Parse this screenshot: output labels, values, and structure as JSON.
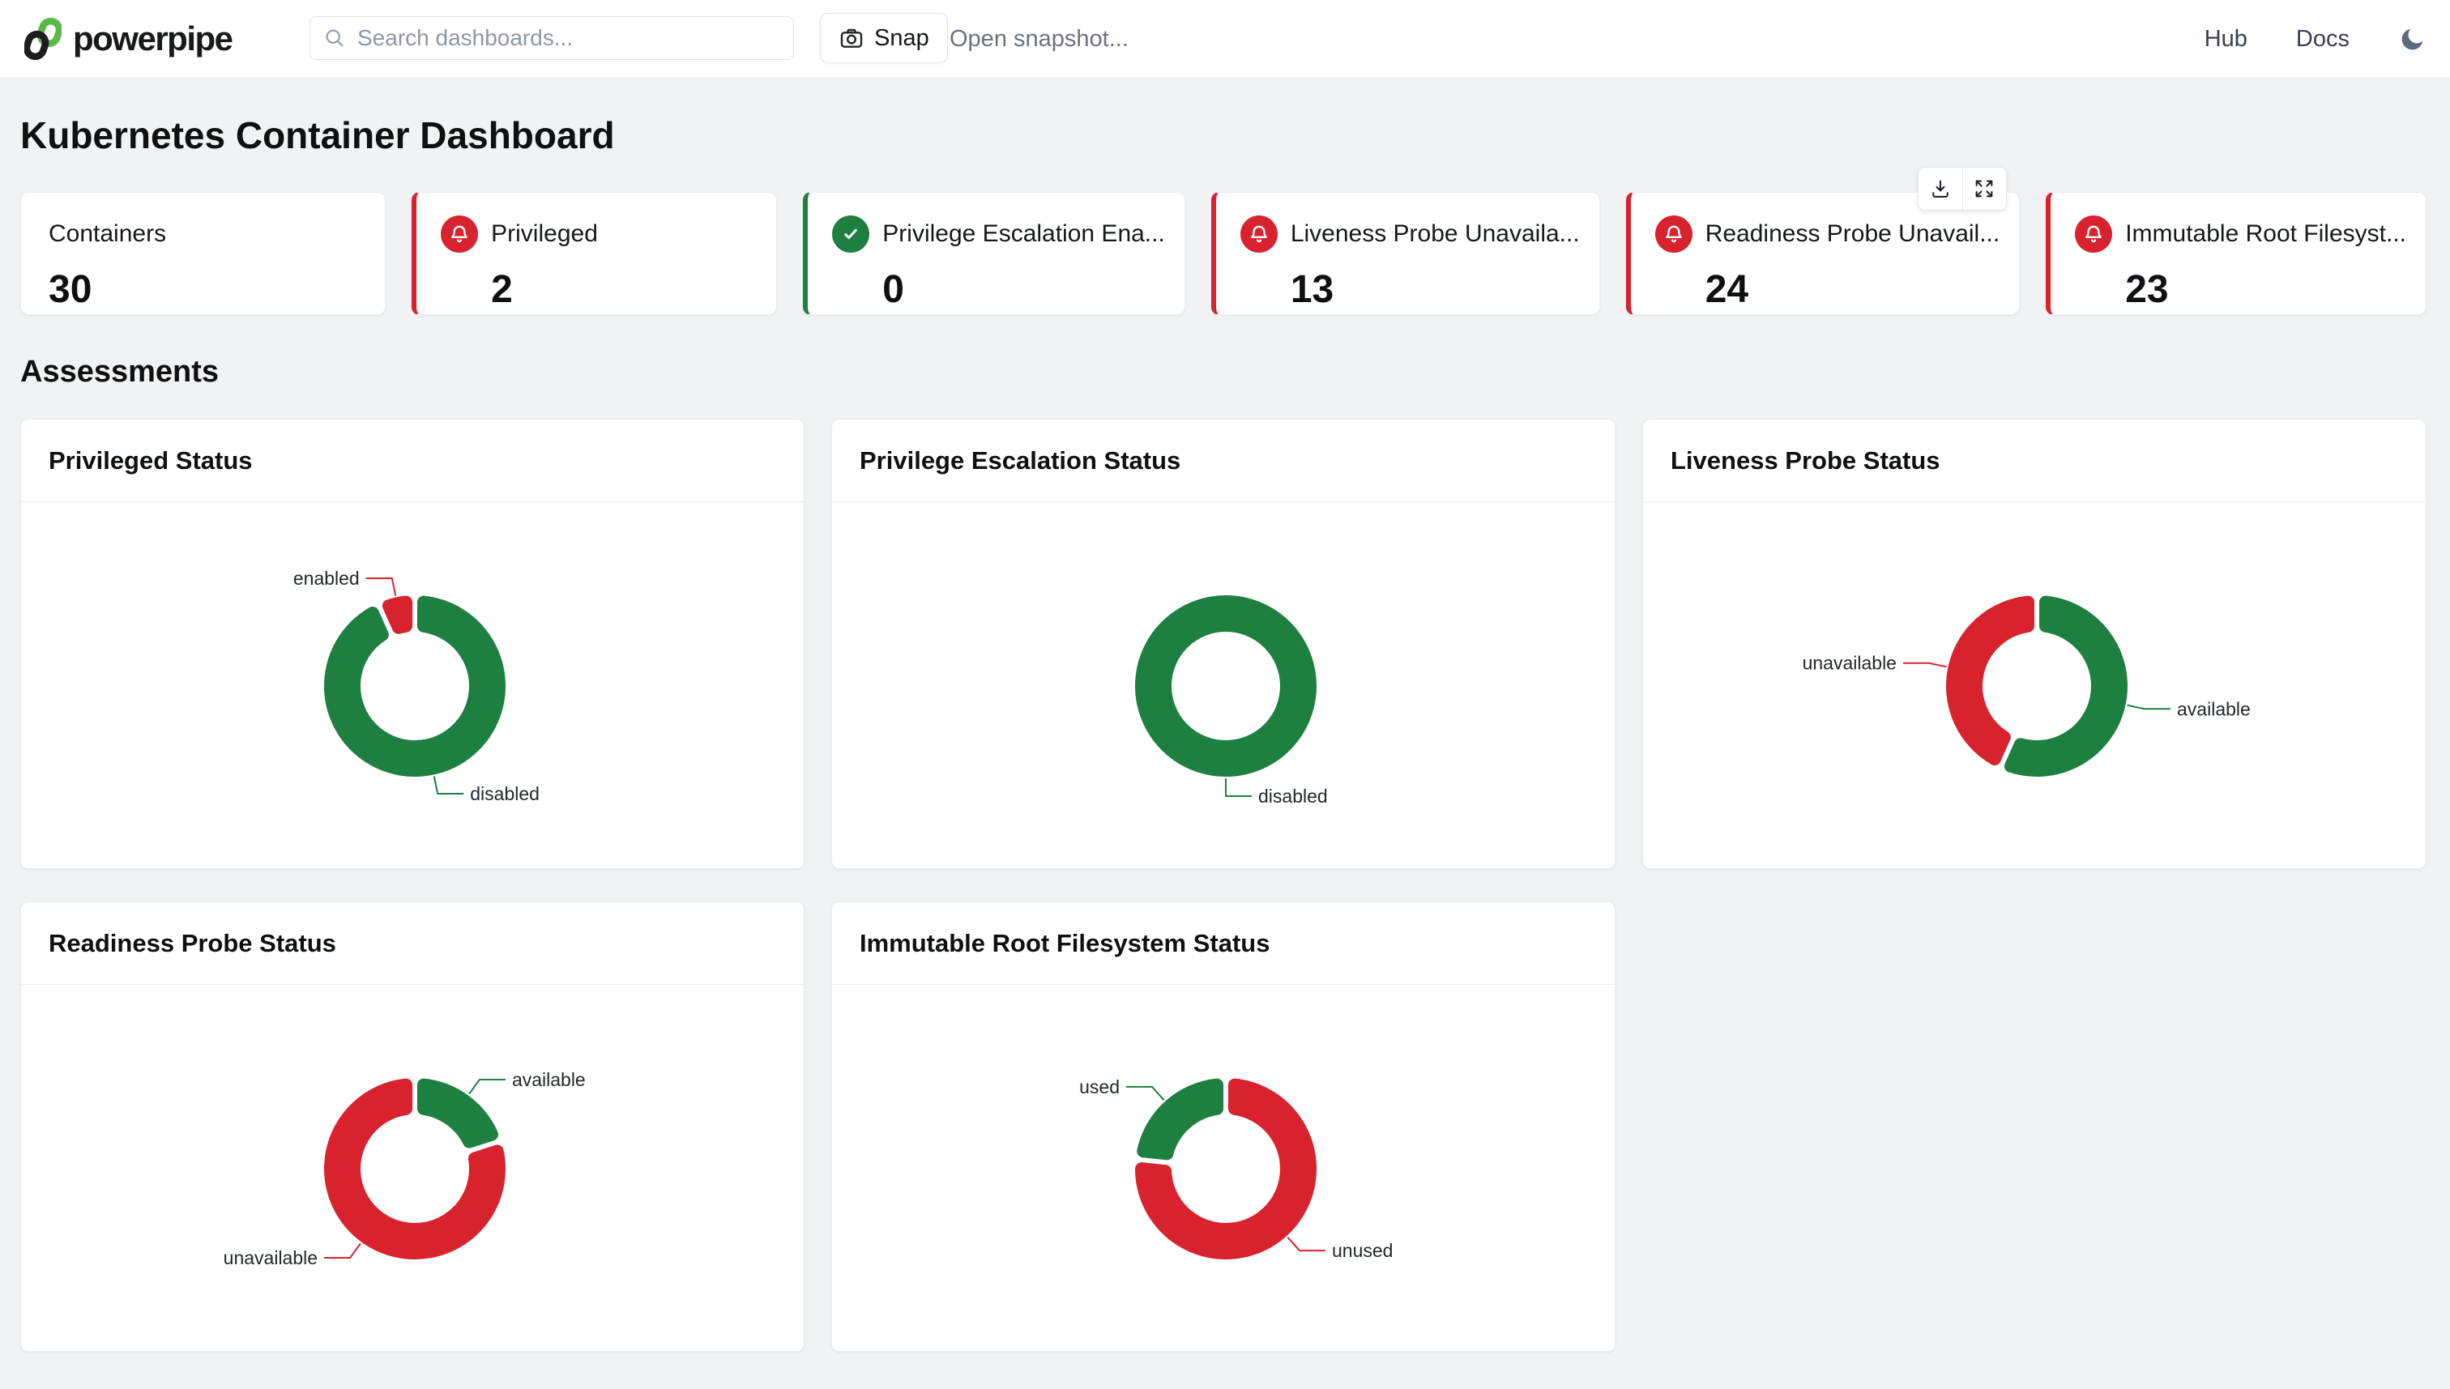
{
  "theme": {
    "ok_green": "#1e8040",
    "alert_red": "#d8232f",
    "background": "#f1f2f4"
  },
  "header": {
    "brand": "powerpipe",
    "search": {
      "placeholder": "Search dashboards..."
    },
    "snap_label": "Snap",
    "open_snapshot_label": "Open snapshot...",
    "nav": {
      "hub": "Hub",
      "docs": "Docs"
    }
  },
  "page": {
    "title": "Kubernetes Container Dashboard",
    "section_title": "Assessments"
  },
  "metrics": {
    "cards": [
      {
        "label": "Containers",
        "value": "30",
        "status": "none"
      },
      {
        "label": "Privileged",
        "value": "2",
        "status": "alert"
      },
      {
        "label": "Privilege Escalation Ena...",
        "value": "0",
        "status": "ok"
      },
      {
        "label": "Liveness Probe Unavaila...",
        "value": "13",
        "status": "alert"
      },
      {
        "label": "Readiness Probe Unavail...",
        "value": "24",
        "status": "alert"
      },
      {
        "label": "Immutable Root Filesyst...",
        "value": "23",
        "status": "alert"
      }
    ]
  },
  "panel_toolbar": {
    "buttons": [
      "download",
      "expand"
    ]
  },
  "chart_data": [
    {
      "type": "pie",
      "title": "Privileged Status",
      "legend": "off",
      "label_style": "callout",
      "total": 30,
      "slices": [
        {
          "label": "disabled",
          "value": 28,
          "color": "#1e8040"
        },
        {
          "label": "enabled",
          "value": 2,
          "color": "#d8232f"
        }
      ]
    },
    {
      "type": "pie",
      "title": "Privilege Escalation Status",
      "legend": "off",
      "label_style": "callout",
      "total": 30,
      "slices": [
        {
          "label": "disabled",
          "value": 30,
          "color": "#1e8040"
        }
      ]
    },
    {
      "type": "pie",
      "title": "Liveness Probe Status",
      "legend": "off",
      "label_style": "callout",
      "total": 30,
      "slices": [
        {
          "label": "available",
          "value": 17,
          "color": "#1e8040"
        },
        {
          "label": "unavailable",
          "value": 13,
          "color": "#d8232f"
        }
      ]
    },
    {
      "type": "pie",
      "title": "Readiness Probe Status",
      "legend": "off",
      "label_style": "callout",
      "total": 30,
      "slices": [
        {
          "label": "available",
          "value": 6,
          "color": "#1e8040"
        },
        {
          "label": "unavailable",
          "value": 24,
          "color": "#d8232f"
        }
      ]
    },
    {
      "type": "pie",
      "title": "Immutable Root Filesystem Status",
      "legend": "off",
      "label_style": "callout",
      "total": 30,
      "slices": [
        {
          "label": "unused",
          "value": 23,
          "color": "#d8232f"
        },
        {
          "label": "used",
          "value": 7,
          "color": "#1e8040"
        }
      ]
    }
  ]
}
